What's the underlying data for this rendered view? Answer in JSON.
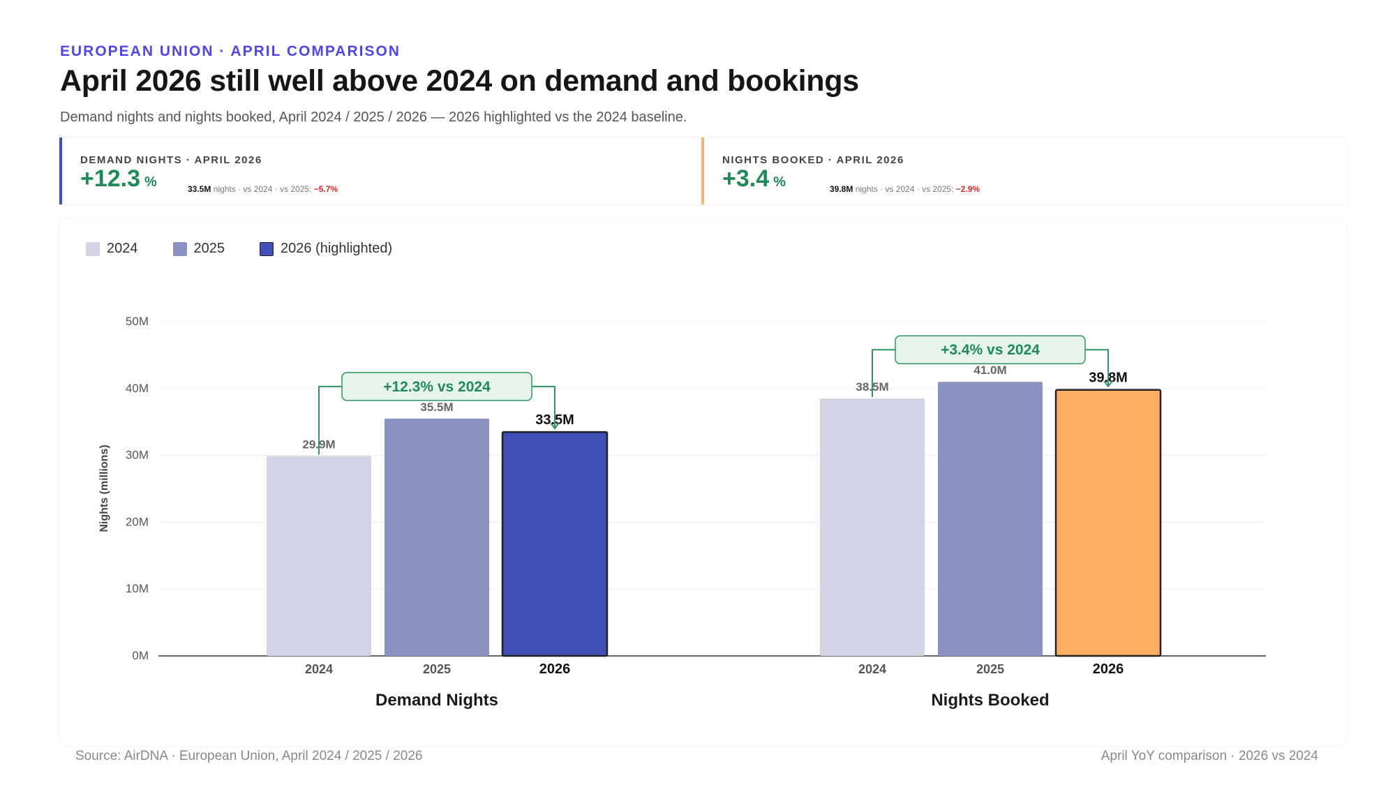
{
  "header": {
    "eyebrow": "EUROPEAN UNION · APRIL COMPARISON",
    "title": "April 2026 still well above 2024 on demand and bookings",
    "subtitle": "Demand nights and nights booked, April 2024 / 2025 / 2026 — 2026 highlighted vs the 2024 baseline."
  },
  "kpis": [
    {
      "label": "DEMAND NIGHTS · APRIL 2026",
      "value": "+12.3",
      "unit": "%",
      "detail_value": "33.5M",
      "detail_text": " nights · vs 2024 · vs 2025: ",
      "detail_delta": "−5.7%",
      "accent": "#4050d0"
    },
    {
      "label": "NIGHTS BOOKED · APRIL 2026",
      "value": "+3.4",
      "unit": "%",
      "detail_value": "39.8M",
      "detail_text": " nights · vs 2024 · vs 2025: ",
      "detail_delta": "−2.9%",
      "accent": "#f7b271"
    }
  ],
  "legend": [
    {
      "label": "2024",
      "color": "#d2d3e4"
    },
    {
      "label": "2025",
      "color": "#8c93c3"
    },
    {
      "label": "2026 (highlighted)",
      "color": "#4050b6"
    }
  ],
  "chart_data": {
    "type": "bar",
    "ylabel": "Nights (millions)",
    "ylim": [
      0,
      50
    ],
    "yticks": [
      0,
      10,
      20,
      30,
      40,
      50
    ],
    "ytick_labels": [
      "0M",
      "10M",
      "20M",
      "30M",
      "40M",
      "50M"
    ],
    "series_names": [
      "2024",
      "2025",
      "2026"
    ],
    "groups": [
      {
        "name": "Demand Nights",
        "values": [
          29.9,
          35.5,
          33.5
        ],
        "value_labels": [
          "29.9M",
          "35.5M",
          "33.5M"
        ],
        "colors": [
          "#d2d3e4",
          "#8c93c3",
          "#4050b6"
        ],
        "annotation": "+12.3% vs 2024"
      },
      {
        "name": "Nights Booked",
        "values": [
          38.5,
          41.0,
          39.8
        ],
        "value_labels": [
          "38.5M",
          "41.0M",
          "39.8M"
        ],
        "colors": [
          "#d2d3e4",
          "#8c93c3",
          "#fdae62"
        ],
        "annotation": "+3.4% vs 2024"
      }
    ],
    "grid": true,
    "legend_position": "top-left"
  },
  "footer": {
    "source": "Source: AirDNA · European Union, April 2024 / 2025 / 2026",
    "note": "April YoY comparison · 2026 vs 2024"
  }
}
